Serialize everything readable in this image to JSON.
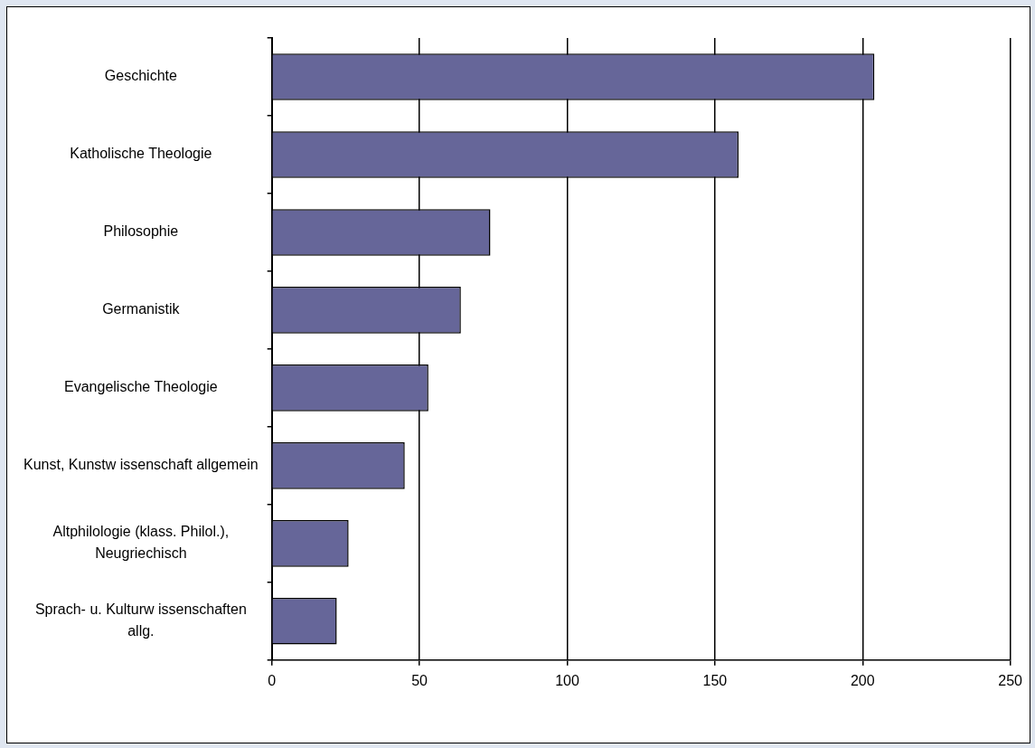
{
  "chart_data": {
    "type": "bar",
    "orientation": "horizontal",
    "categories": [
      "Geschichte",
      "Katholische Theologie",
      "Philosophie",
      "Germanistik",
      "Evangelische Theologie",
      "Kunst, Kunstw issenschaft allgemein",
      "Altphilologie (klass. Philol.), Neugriechisch",
      "Sprach- u. Kulturw issenschaften allg."
    ],
    "values": [
      204,
      158,
      74,
      64,
      53,
      45,
      26,
      22
    ],
    "color": "#666699",
    "xlim": [
      0,
      250
    ],
    "xticks": [
      0,
      50,
      100,
      150,
      200,
      250
    ],
    "grid": "x"
  }
}
